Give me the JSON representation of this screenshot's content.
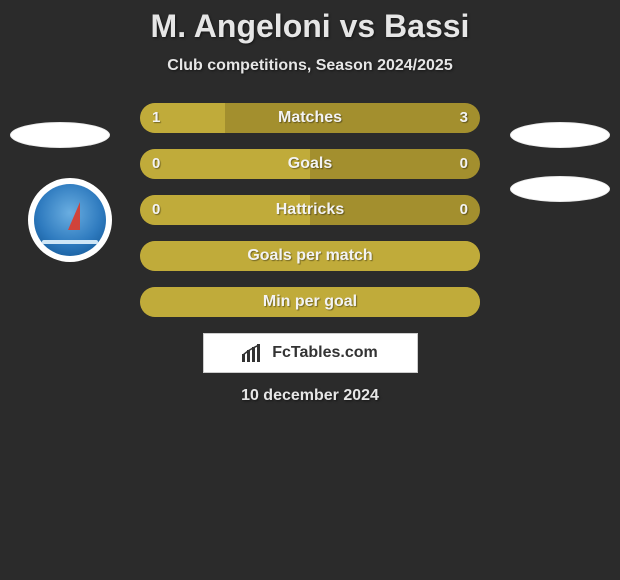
{
  "title": "M. Angeloni vs Bassi",
  "subtitle": "Club competitions, Season 2024/2025",
  "date": "10 december 2024",
  "brand": {
    "text": "FcTables.com"
  },
  "colors": {
    "bar_bg": "#a38f2e",
    "bar_fill": "#c0ab3a",
    "page_bg": "#2b2b2b",
    "text": "#e6e6e6",
    "brand_bg": "#ffffff",
    "brand_text": "#333333"
  },
  "bars": [
    {
      "label": "Matches",
      "left": "1",
      "right": "3",
      "left_pct": 25
    },
    {
      "label": "Goals",
      "left": "0",
      "right": "0",
      "left_pct": 50
    },
    {
      "label": "Hattricks",
      "left": "0",
      "right": "0",
      "left_pct": 50
    },
    {
      "label": "Goals per match",
      "left": "",
      "right": "",
      "left_pct": 100
    },
    {
      "label": "Min per goal",
      "left": "",
      "right": "",
      "left_pct": 100
    }
  ]
}
